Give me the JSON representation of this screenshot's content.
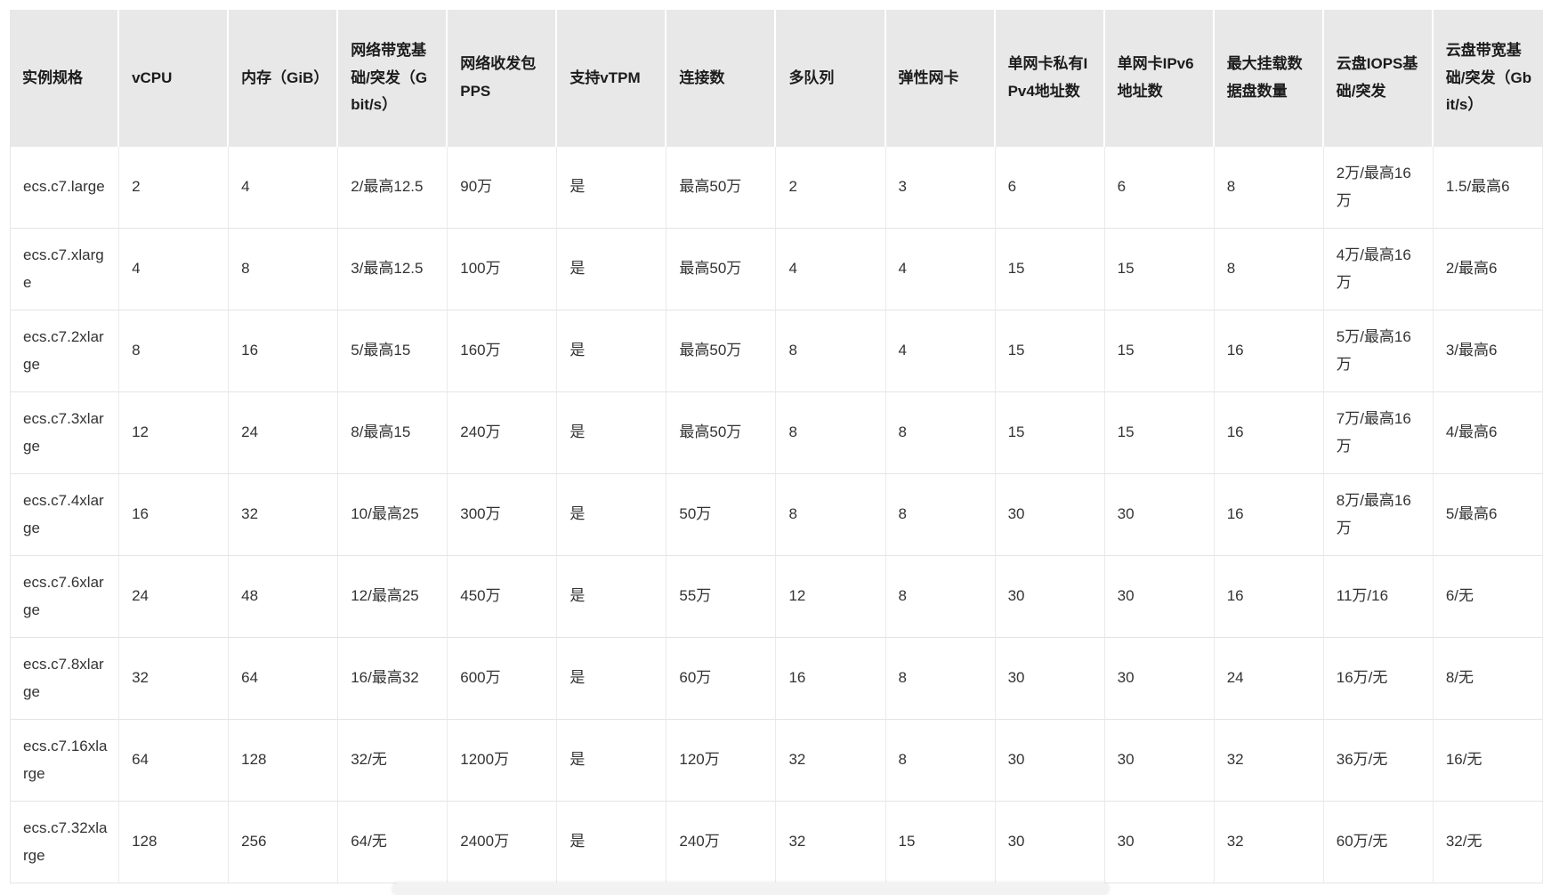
{
  "table": {
    "columns": [
      "实例规格",
      "vCPU",
      "内存（GiB）",
      "网络带宽基础/突发（Gbit/s）",
      "网络收发包PPS",
      "支持vTPM",
      "连接数",
      "多队列",
      "弹性网卡",
      "单网卡私有IPv4地址数",
      "单网卡IPv6地址数",
      "最大挂载数据盘数量",
      "云盘IOPS基础/突发",
      "云盘带宽基础/突发（Gbit/s）"
    ],
    "rows": [
      [
        "ecs.c7.large",
        "2",
        "4",
        "2/最高12.5",
        "90万",
        "是",
        "最高50万",
        "2",
        "3",
        "6",
        "6",
        "8",
        "2万/最高16万",
        "1.5/最高6"
      ],
      [
        "ecs.c7.xlarge",
        "4",
        "8",
        "3/最高12.5",
        "100万",
        "是",
        "最高50万",
        "4",
        "4",
        "15",
        "15",
        "8",
        "4万/最高16万",
        "2/最高6"
      ],
      [
        "ecs.c7.2xlarge",
        "8",
        "16",
        "5/最高15",
        "160万",
        "是",
        "最高50万",
        "8",
        "4",
        "15",
        "15",
        "16",
        "5万/最高16万",
        "3/最高6"
      ],
      [
        "ecs.c7.3xlarge",
        "12",
        "24",
        "8/最高15",
        "240万",
        "是",
        "最高50万",
        "8",
        "8",
        "15",
        "15",
        "16",
        "7万/最高16万",
        "4/最高6"
      ],
      [
        "ecs.c7.4xlarge",
        "16",
        "32",
        "10/最高25",
        "300万",
        "是",
        "50万",
        "8",
        "8",
        "30",
        "30",
        "16",
        "8万/最高16万",
        "5/最高6"
      ],
      [
        "ecs.c7.6xlarge",
        "24",
        "48",
        "12/最高25",
        "450万",
        "是",
        "55万",
        "12",
        "8",
        "30",
        "30",
        "16",
        "11万/16",
        "6/无"
      ],
      [
        "ecs.c7.8xlarge",
        "32",
        "64",
        "16/最高32",
        "600万",
        "是",
        "60万",
        "16",
        "8",
        "30",
        "30",
        "24",
        "16万/无",
        "8/无"
      ],
      [
        "ecs.c7.16xlarge",
        "64",
        "128",
        "32/无",
        "1200万",
        "是",
        "120万",
        "32",
        "8",
        "30",
        "30",
        "32",
        "36万/无",
        "16/无"
      ],
      [
        "ecs.c7.32xlarge",
        "128",
        "256",
        "64/无",
        "2400万",
        "是",
        "240万",
        "32",
        "15",
        "30",
        "30",
        "32",
        "60万/无",
        "32/无"
      ]
    ]
  },
  "colors": {
    "header_background": "#e8e8e8",
    "header_text": "#1c1c1c",
    "cell_text": "#333333",
    "row_border": "#e4e4e4",
    "column_border": "#ebebeb"
  }
}
